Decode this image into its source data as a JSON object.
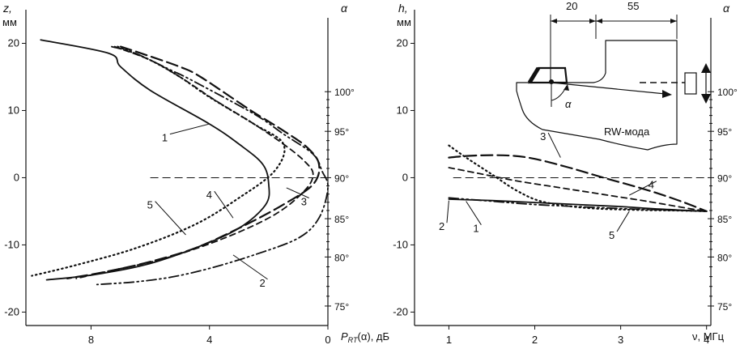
{
  "chart_data": [
    {
      "type": "line",
      "panel": "left",
      "ylabel": "z,",
      "ylabel_unit": "мм",
      "xlabel_sym": "P",
      "xlabel_sub": "RT",
      "xlabel_rest": "(α), дБ",
      "xlim": [
        10.2,
        0
      ],
      "ylim": [
        -22,
        25
      ],
      "xticks": [
        8,
        4,
        0
      ],
      "yticks": [
        20,
        10,
        0,
        -10,
        -20
      ],
      "right_axis_label": "α",
      "right_ticks": [
        {
          "value": 100,
          "label": "100°",
          "z": 12.8
        },
        {
          "value": 95,
          "label": "95°",
          "z": 6.9
        },
        {
          "value": 90,
          "label": "90°",
          "z": 0
        },
        {
          "value": 85,
          "label": "85°",
          "z": -6.1
        },
        {
          "value": 80,
          "label": "80°",
          "z": -11.8
        },
        {
          "value": 75,
          "label": "75°",
          "z": -19.1
        }
      ],
      "reference_line_z": 0,
      "series": [
        {
          "name": "1",
          "style": "solid",
          "x": [
            9.7,
            7.4,
            7.0,
            6.0,
            4.0,
            3.0,
            2.2,
            2.0,
            2.1,
            3.0,
            4.5,
            6.2,
            8.0,
            9.5
          ],
          "y": [
            20.5,
            18.5,
            16.5,
            13.0,
            8.0,
            5.0,
            2.0,
            -1.0,
            -4.0,
            -7.5,
            -10.5,
            -13.0,
            -14.5,
            -15.2
          ]
        },
        {
          "name": "2",
          "style": "dashdotdot",
          "x": [
            7.3,
            6.5,
            5.3,
            4.6,
            2.5,
            1.5,
            0.5,
            0.2,
            0.0,
            0.3,
            1.0,
            2.5,
            4.0,
            5.3,
            6.5,
            7.8
          ],
          "y": [
            19.5,
            18.5,
            16.0,
            14.5,
            9.5,
            6.5,
            3.5,
            1.0,
            -1.5,
            -6.0,
            -9.0,
            -11.5,
            -13.5,
            -14.8,
            -15.5,
            -15.9
          ]
        },
        {
          "name": "3",
          "style": "longdash",
          "x": [
            7.0,
            6.3,
            5.0,
            4.3,
            2.6,
            1.5,
            0.7,
            0.3,
            0.5,
            1.5,
            3.0,
            4.5,
            6.0,
            7.5,
            8.8
          ],
          "y": [
            19.5,
            18.5,
            16.5,
            15.0,
            10.0,
            7.0,
            4.5,
            2.0,
            -1.0,
            -4.0,
            -7.5,
            -10.5,
            -12.5,
            -14.0,
            -15.0
          ]
        },
        {
          "name": "4",
          "style": "dash",
          "x": [
            7.2,
            6.0,
            5.0,
            3.8,
            2.5,
            1.5,
            0.8,
            0.5,
            0.8,
            1.8,
            3.5,
            5.5,
            7.5,
            8.5
          ],
          "y": [
            19.5,
            17.5,
            15.0,
            11.5,
            8.0,
            5.0,
            2.5,
            0.5,
            -2.0,
            -5.5,
            -9.0,
            -12.0,
            -14.0,
            -15.0
          ]
        },
        {
          "name": "5",
          "style": "dot",
          "x": [
            7.1,
            6.0,
            5.0,
            4.0,
            2.5,
            1.5,
            1.8,
            3.0,
            4.5,
            6.5,
            8.5,
            10.0
          ],
          "y": [
            19.5,
            17.5,
            15.0,
            12.0,
            8.0,
            5.0,
            1.0,
            -3.0,
            -7.0,
            -10.5,
            -13.0,
            -14.6
          ]
        }
      ],
      "callouts": [
        {
          "label": "1",
          "x": 5.5,
          "y": 6.0,
          "to_x": 4.0,
          "to_y": 8.0
        },
        {
          "label": "2",
          "x": 2.2,
          "y": -15.6,
          "to_x": 3.2,
          "to_y": -11.5
        },
        {
          "label": "3",
          "x": 0.8,
          "y": -3.5,
          "to_x": 1.4,
          "to_y": -1.5
        },
        {
          "label": "4",
          "x": 4.0,
          "y": -2.5,
          "to_x": 3.2,
          "to_y": -6.0
        },
        {
          "label": "5",
          "x": 6.0,
          "y": -4.0,
          "to_x": 4.8,
          "to_y": -8.5
        }
      ]
    },
    {
      "type": "line",
      "panel": "right",
      "ylabel": "h,",
      "ylabel_unit": "мм",
      "xlabel": "ν, МГц",
      "xlim": [
        0.6,
        4.05
      ],
      "ylim": [
        -22,
        25
      ],
      "xticks": [
        1,
        2,
        3,
        4
      ],
      "yticks": [
        20,
        10,
        0,
        -10,
        -20
      ],
      "right_axis_label": "α",
      "right_ticks": [
        {
          "value": 100,
          "label": "100°",
          "z": 12.8
        },
        {
          "value": 95,
          "label": "95°",
          "z": 6.9
        },
        {
          "value": 90,
          "label": "90°",
          "z": 0
        },
        {
          "value": 85,
          "label": "85°",
          "z": -6.1
        },
        {
          "value": 80,
          "label": "80°",
          "z": -11.8
        },
        {
          "value": 75,
          "label": "75°",
          "z": -19.1
        }
      ],
      "reference_line_z": 0,
      "series": [
        {
          "name": "1",
          "style": "solid",
          "x": [
            1.0,
            1.5,
            2.0,
            2.5,
            3.0,
            3.5,
            4.0
          ],
          "y": [
            -3.2,
            -3.4,
            -3.7,
            -4.0,
            -4.3,
            -4.7,
            -5.0
          ]
        },
        {
          "name": "2",
          "style": "dashdotdot",
          "x": [
            1.0,
            1.5,
            2.0,
            2.5,
            3.0,
            3.5,
            4.0
          ],
          "y": [
            -3.0,
            -3.5,
            -4.0,
            -4.3,
            -4.6,
            -4.8,
            -5.0
          ]
        },
        {
          "name": "3",
          "style": "longdash",
          "x": [
            1.0,
            1.3,
            1.7,
            2.0,
            2.4,
            2.8,
            3.3,
            3.7,
            4.0
          ],
          "y": [
            3.0,
            3.3,
            3.3,
            2.8,
            1.5,
            0.0,
            -1.8,
            -3.5,
            -5.0
          ]
        },
        {
          "name": "4",
          "style": "dash",
          "x": [
            1.0,
            1.4,
            1.8,
            2.3,
            2.8,
            3.3,
            3.8,
            4.0
          ],
          "y": [
            1.5,
            0.5,
            -0.5,
            -1.5,
            -2.5,
            -3.5,
            -4.6,
            -5.0
          ]
        },
        {
          "name": "5",
          "style": "dot",
          "x": [
            1.0,
            1.2,
            1.5,
            1.8,
            2.1,
            2.6,
            3.2,
            3.7,
            4.0
          ],
          "y": [
            4.8,
            3.0,
            0.5,
            -2.0,
            -3.6,
            -4.5,
            -4.8,
            -4.9,
            -5.0
          ]
        }
      ],
      "callouts": [
        {
          "label": "1",
          "x": 1.32,
          "y": -7.5,
          "to_x": 1.2,
          "to_y": -3.5
        },
        {
          "label": "2",
          "x": 0.92,
          "y": -7.2,
          "to_x": 1.0,
          "to_y": -3.4
        },
        {
          "label": "3",
          "x": 2.1,
          "y": 6.2,
          "to_x": 2.3,
          "to_y": 3.0
        },
        {
          "label": "4",
          "x": 3.36,
          "y": -1.0,
          "to_x": 3.1,
          "to_y": -2.6
        },
        {
          "label": "5",
          "x": 2.9,
          "y": -8.5,
          "to_x": 3.1,
          "to_y": -5.0
        }
      ]
    }
  ],
  "inset": {
    "dimensions": [
      "20",
      "55"
    ],
    "angle_label": "α",
    "mode_label": "RW-мода"
  }
}
